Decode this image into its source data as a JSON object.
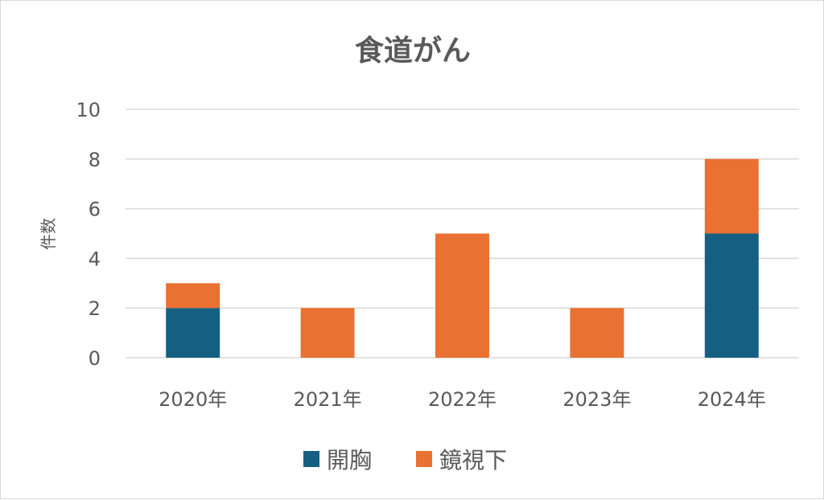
{
  "chart_data": {
    "type": "bar",
    "stacked": true,
    "title": "食道がん",
    "xlabel": "",
    "ylabel": "件数",
    "categories": [
      "2020年",
      "2021年",
      "2022年",
      "2023年",
      "2024年"
    ],
    "series": [
      {
        "name": "開胸",
        "color": "#156082",
        "values": [
          2,
          0,
          0,
          0,
          5
        ]
      },
      {
        "name": "鏡視下",
        "color": "#E97132",
        "values": [
          1,
          2,
          5,
          2,
          3
        ]
      }
    ],
    "ylim": [
      0,
      10
    ],
    "yticks": [
      0,
      2,
      4,
      6,
      8,
      10
    ],
    "grid": true,
    "legend_position": "bottom"
  }
}
